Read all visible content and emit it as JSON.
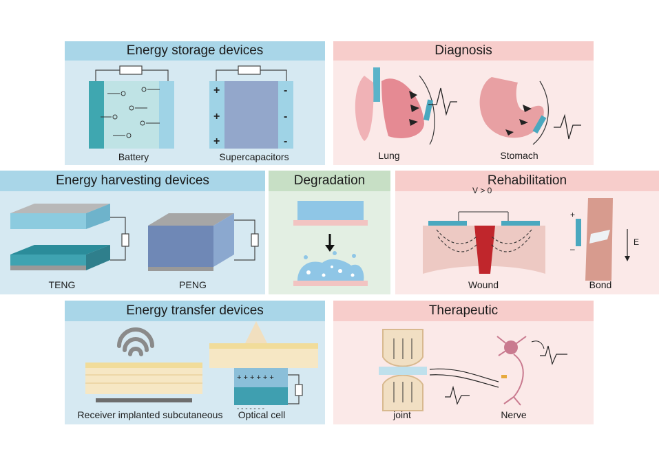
{
  "panels": {
    "storage": {
      "title": "Energy storage devices",
      "labels": [
        "Battery",
        "Supercapacitors"
      ]
    },
    "diagnosis": {
      "title": "Diagnosis",
      "labels": [
        "Lung",
        "Stomach"
      ]
    },
    "harvesting": {
      "title": "Energy harvesting devices",
      "labels": [
        "TENG",
        "PENG"
      ]
    },
    "degradation": {
      "title": "Degradation"
    },
    "rehabilitation": {
      "title": "Rehabilitation",
      "labels": [
        "Wound",
        "Bond"
      ],
      "voltage_label": "V > 0",
      "field_label": "E"
    },
    "transfer": {
      "title": "Energy transfer devices",
      "labels": [
        "Receiver implanted subcutaneous",
        "Optical cell"
      ]
    },
    "therapeutic": {
      "title": "Therapeutic",
      "labels": [
        "joint",
        "Nerve"
      ]
    }
  },
  "colors": {
    "blue_panel": "#d6e9f2",
    "blue_header": "#a9d6e8",
    "pink_panel": "#fbe9e8",
    "pink_header": "#f7cdcb",
    "green_panel": "#e3efe3",
    "green_header": "#c7dfc5"
  }
}
